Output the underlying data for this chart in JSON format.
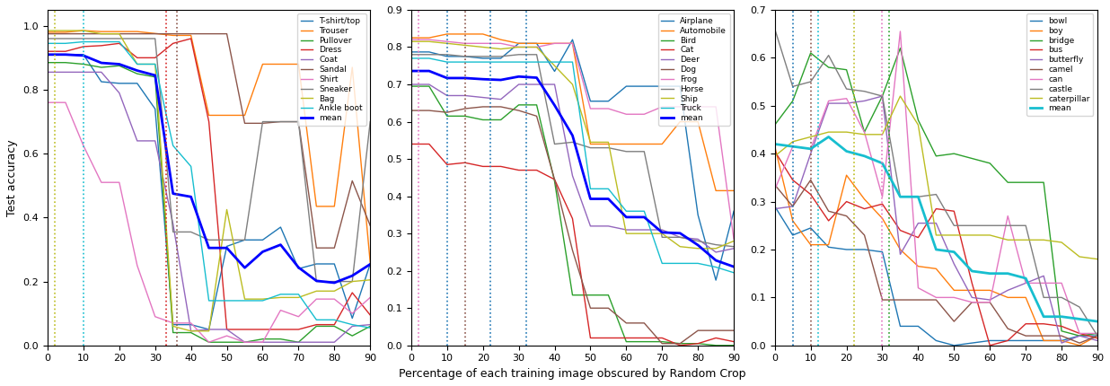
{
  "x": [
    0,
    5,
    10,
    15,
    20,
    25,
    30,
    35,
    40,
    45,
    50,
    55,
    60,
    65,
    70,
    75,
    80,
    85,
    90
  ],
  "fashion_classes": [
    "T-shirt/top",
    "Trouser",
    "Pullover",
    "Dress",
    "Coat",
    "Sandal",
    "Shirt",
    "Sneaker",
    "Bag",
    "Ankle boot",
    "mean"
  ],
  "fashion_colors": [
    "#1f77b4",
    "#ff7f0e",
    "#2ca02c",
    "#d62728",
    "#9467bd",
    "#8c564b",
    "#e377c2",
    "#7f7f7f",
    "#bcbd22",
    "#17becf",
    "#0000ff"
  ],
  "fashion_data": {
    "T-shirt/top": [
      0.91,
      0.91,
      0.91,
      0.825,
      0.82,
      0.82,
      0.74,
      0.065,
      0.065,
      0.05,
      0.31,
      0.33,
      0.33,
      0.37,
      0.24,
      0.255,
      0.255,
      0.085,
      0.255
    ],
    "Trouser": [
      0.98,
      0.98,
      0.985,
      0.982,
      0.982,
      0.982,
      0.976,
      0.97,
      0.97,
      0.72,
      0.72,
      0.72,
      0.88,
      0.88,
      0.88,
      0.435,
      0.435,
      0.87,
      0.26
    ],
    "Pullover": [
      0.885,
      0.885,
      0.88,
      0.87,
      0.875,
      0.85,
      0.84,
      0.04,
      0.04,
      0.01,
      0.01,
      0.01,
      0.02,
      0.02,
      0.01,
      0.06,
      0.06,
      0.03,
      0.06
    ],
    "Dress": [
      0.92,
      0.92,
      0.935,
      0.938,
      0.945,
      0.9,
      0.9,
      0.945,
      0.96,
      0.7,
      0.05,
      0.05,
      0.05,
      0.05,
      0.05,
      0.065,
      0.065,
      0.165,
      0.095
    ],
    "Coat": [
      0.855,
      0.855,
      0.855,
      0.855,
      0.79,
      0.64,
      0.64,
      0.38,
      0.045,
      0.05,
      0.05,
      0.01,
      0.01,
      0.01,
      0.01,
      0.01,
      0.01,
      0.06,
      0.065
    ],
    "Sandal": [
      0.975,
      0.975,
      0.975,
      0.975,
      0.975,
      0.975,
      0.975,
      0.975,
      0.975,
      0.975,
      0.975,
      0.695,
      0.695,
      0.7,
      0.7,
      0.305,
      0.305,
      0.515,
      0.375
    ],
    "Shirt": [
      0.76,
      0.76,
      0.625,
      0.51,
      0.51,
      0.25,
      0.09,
      0.07,
      0.07,
      0.01,
      0.03,
      0.01,
      0.01,
      0.11,
      0.09,
      0.145,
      0.145,
      0.1,
      0.15
    ],
    "Sneaker": [
      0.96,
      0.96,
      0.96,
      0.96,
      0.96,
      0.96,
      0.96,
      0.355,
      0.355,
      0.33,
      0.33,
      0.33,
      0.7,
      0.7,
      0.7,
      0.2,
      0.2,
      0.2,
      0.7
    ],
    "Bag": [
      0.985,
      0.985,
      0.985,
      0.975,
      0.975,
      0.88,
      0.88,
      0.06,
      0.045,
      0.045,
      0.425,
      0.145,
      0.145,
      0.15,
      0.15,
      0.17,
      0.17,
      0.2,
      0.205
    ],
    "Ankle boot": [
      0.945,
      0.945,
      0.95,
      0.95,
      0.95,
      0.88,
      0.88,
      0.625,
      0.56,
      0.14,
      0.14,
      0.14,
      0.14,
      0.16,
      0.16,
      0.08,
      0.08,
      0.065,
      0.055
    ],
    "mean": [
      0.91,
      0.91,
      0.907,
      0.884,
      0.88,
      0.86,
      0.845,
      0.475,
      0.465,
      0.305,
      0.305,
      0.243,
      0.293,
      0.315,
      0.244,
      0.202,
      0.196,
      0.218,
      0.254
    ]
  },
  "fashion_vlines": [
    {
      "x": 0,
      "color": "#1f77b4"
    },
    {
      "x": 2,
      "color": "#bcbd22"
    },
    {
      "x": 10,
      "color": "#17becf"
    },
    {
      "x": 33,
      "color": "#d62728"
    },
    {
      "x": 36,
      "color": "#8c564b"
    }
  ],
  "cifar10_classes": [
    "Airplane",
    "Automobile",
    "Bird",
    "Cat",
    "Deer",
    "Dog",
    "Frog",
    "Horse",
    "Ship",
    "Truck",
    "mean"
  ],
  "cifar10_colors": [
    "#1f77b4",
    "#ff7f0e",
    "#2ca02c",
    "#d62728",
    "#9467bd",
    "#8c564b",
    "#e377c2",
    "#7f7f7f",
    "#bcbd22",
    "#17becf",
    "#0000ff"
  ],
  "cifar10_data": {
    "Airplane": [
      0.787,
      0.787,
      0.775,
      0.775,
      0.77,
      0.77,
      0.81,
      0.81,
      0.735,
      0.82,
      0.655,
      0.655,
      0.695,
      0.695,
      0.695,
      0.695,
      0.35,
      0.175,
      0.36
    ],
    "Automobile": [
      0.825,
      0.825,
      0.835,
      0.835,
      0.835,
      0.82,
      0.81,
      0.81,
      0.81,
      0.81,
      0.54,
      0.54,
      0.54,
      0.54,
      0.54,
      0.6,
      0.6,
      0.415,
      0.415
    ],
    "Bird": [
      0.695,
      0.695,
      0.615,
      0.615,
      0.605,
      0.605,
      0.645,
      0.645,
      0.44,
      0.135,
      0.135,
      0.135,
      0.01,
      0.01,
      0.01,
      0.005,
      0.005,
      0.0,
      0.0
    ],
    "Cat": [
      0.54,
      0.54,
      0.485,
      0.49,
      0.48,
      0.48,
      0.47,
      0.47,
      0.445,
      0.34,
      0.02,
      0.02,
      0.02,
      0.02,
      0.02,
      0.0,
      0.005,
      0.02,
      0.01
    ],
    "Deer": [
      0.7,
      0.7,
      0.67,
      0.67,
      0.665,
      0.66,
      0.7,
      0.7,
      0.7,
      0.455,
      0.32,
      0.32,
      0.31,
      0.31,
      0.31,
      0.29,
      0.285,
      0.25,
      0.26
    ],
    "Dog": [
      0.63,
      0.63,
      0.625,
      0.635,
      0.64,
      0.64,
      0.63,
      0.615,
      0.445,
      0.255,
      0.1,
      0.1,
      0.06,
      0.06,
      0.005,
      0.005,
      0.04,
      0.04,
      0.04
    ],
    "Frog": [
      0.82,
      0.82,
      0.815,
      0.81,
      0.81,
      0.81,
      0.8,
      0.8,
      0.81,
      0.81,
      0.635,
      0.635,
      0.62,
      0.62,
      0.64,
      0.64,
      0.64,
      0.64,
      0.285
    ],
    "Horse": [
      0.78,
      0.78,
      0.78,
      0.775,
      0.775,
      0.775,
      0.78,
      0.78,
      0.54,
      0.545,
      0.53,
      0.53,
      0.52,
      0.52,
      0.29,
      0.29,
      0.28,
      0.27,
      0.265
    ],
    "Ship": [
      0.815,
      0.815,
      0.81,
      0.805,
      0.8,
      0.795,
      0.8,
      0.8,
      0.75,
      0.7,
      0.545,
      0.545,
      0.3,
      0.3,
      0.3,
      0.265,
      0.26,
      0.26,
      0.28
    ],
    "Truck": [
      0.77,
      0.77,
      0.76,
      0.76,
      0.76,
      0.76,
      0.76,
      0.76,
      0.76,
      0.76,
      0.42,
      0.42,
      0.36,
      0.36,
      0.22,
      0.22,
      0.22,
      0.21,
      0.195
    ],
    "mean": [
      0.736,
      0.736,
      0.717,
      0.717,
      0.714,
      0.712,
      0.721,
      0.718,
      0.644,
      0.563,
      0.393,
      0.393,
      0.344,
      0.344,
      0.303,
      0.301,
      0.269,
      0.228,
      0.211
    ]
  },
  "cifar10_vlines": [
    {
      "x": 0,
      "color": "#d62728"
    },
    {
      "x": 2,
      "color": "#e377c2"
    },
    {
      "x": 10,
      "color": "#1f77b4"
    },
    {
      "x": 15,
      "color": "#8c564b"
    },
    {
      "x": 22,
      "color": "#1f77b4"
    },
    {
      "x": 32,
      "color": "#1f77b4"
    }
  ],
  "cifar100_classes": [
    "bowl",
    "boy",
    "bridge",
    "bus",
    "butterfly",
    "camel",
    "can",
    "castle",
    "caterpillar",
    "mean"
  ],
  "cifar100_colors": [
    "#1f77b4",
    "#ff7f0e",
    "#2ca02c",
    "#d62728",
    "#9467bd",
    "#8c564b",
    "#e377c2",
    "#7f7f7f",
    "#bcbd22",
    "#17becf"
  ],
  "cifar100_data": {
    "bowl": [
      0.29,
      0.23,
      0.245,
      0.205,
      0.2,
      0.2,
      0.195,
      0.04,
      0.04,
      0.01,
      0.0,
      0.005,
      0.01,
      0.01,
      0.01,
      0.01,
      0.01,
      0.02,
      0.02
    ],
    "boy": [
      0.415,
      0.26,
      0.21,
      0.21,
      0.355,
      0.305,
      0.265,
      0.2,
      0.165,
      0.16,
      0.115,
      0.115,
      0.115,
      0.1,
      0.1,
      0.01,
      0.01,
      0.0,
      0.02
    ],
    "bridge": [
      0.46,
      0.51,
      0.61,
      0.58,
      0.575,
      0.445,
      0.52,
      0.62,
      0.47,
      0.395,
      0.4,
      0.39,
      0.38,
      0.34,
      0.34,
      0.34,
      0.03,
      0.02,
      0.025
    ],
    "bus": [
      0.405,
      0.345,
      0.315,
      0.26,
      0.3,
      0.285,
      0.295,
      0.24,
      0.225,
      0.285,
      0.28,
      0.13,
      0.0,
      0.01,
      0.045,
      0.045,
      0.04,
      0.025,
      0.015
    ],
    "butterfly": [
      0.285,
      0.29,
      0.4,
      0.505,
      0.505,
      0.51,
      0.52,
      0.19,
      0.255,
      0.255,
      0.17,
      0.1,
      0.095,
      0.115,
      0.13,
      0.145,
      0.005,
      0.02,
      0.01
    ],
    "camel": [
      0.335,
      0.29,
      0.345,
      0.28,
      0.27,
      0.23,
      0.095,
      0.095,
      0.095,
      0.095,
      0.05,
      0.09,
      0.09,
      0.035,
      0.02,
      0.02,
      0.02,
      0.005,
      0.02
    ],
    "can": [
      0.325,
      0.415,
      0.41,
      0.51,
      0.515,
      0.445,
      0.31,
      0.655,
      0.12,
      0.1,
      0.1,
      0.09,
      0.09,
      0.27,
      0.13,
      0.13,
      0.13,
      0.025,
      0.025
    ],
    "castle": [
      0.66,
      0.54,
      0.55,
      0.605,
      0.535,
      0.53,
      0.52,
      0.31,
      0.31,
      0.315,
      0.25,
      0.25,
      0.25,
      0.25,
      0.25,
      0.1,
      0.1,
      0.08,
      0.02
    ],
    "caterpillar": [
      0.395,
      0.425,
      0.435,
      0.445,
      0.445,
      0.44,
      0.44,
      0.52,
      0.46,
      0.23,
      0.23,
      0.23,
      0.23,
      0.22,
      0.22,
      0.22,
      0.215,
      0.185,
      0.18
    ],
    "mean": [
      0.42,
      0.415,
      0.41,
      0.435,
      0.405,
      0.395,
      0.38,
      0.31,
      0.31,
      0.2,
      0.195,
      0.155,
      0.15,
      0.15,
      0.14,
      0.06,
      0.06,
      0.055,
      0.05
    ]
  },
  "cifar100_vlines": [
    {
      "x": 0,
      "color": "#d62728"
    },
    {
      "x": 5,
      "color": "#1f77b4"
    },
    {
      "x": 10,
      "color": "#8c564b"
    },
    {
      "x": 12,
      "color": "#17becf"
    },
    {
      "x": 22,
      "color": "#bcbd22"
    },
    {
      "x": 30,
      "color": "#e377c2"
    },
    {
      "x": 32,
      "color": "#2ca02c"
    }
  ],
  "xlabel": "Percentage of each training image obscured by Random Crop",
  "ylabel": "Test accuracy",
  "xlim": [
    0,
    90
  ],
  "ylim_fashion": [
    0.0,
    1.05
  ],
  "ylim_cifar10": [
    0.0,
    0.9
  ],
  "ylim_cifar100": [
    0.0,
    0.7
  ],
  "xticks": [
    0,
    10,
    20,
    30,
    40,
    50,
    60,
    70,
    80,
    90
  ],
  "background_color": "#ffffff"
}
